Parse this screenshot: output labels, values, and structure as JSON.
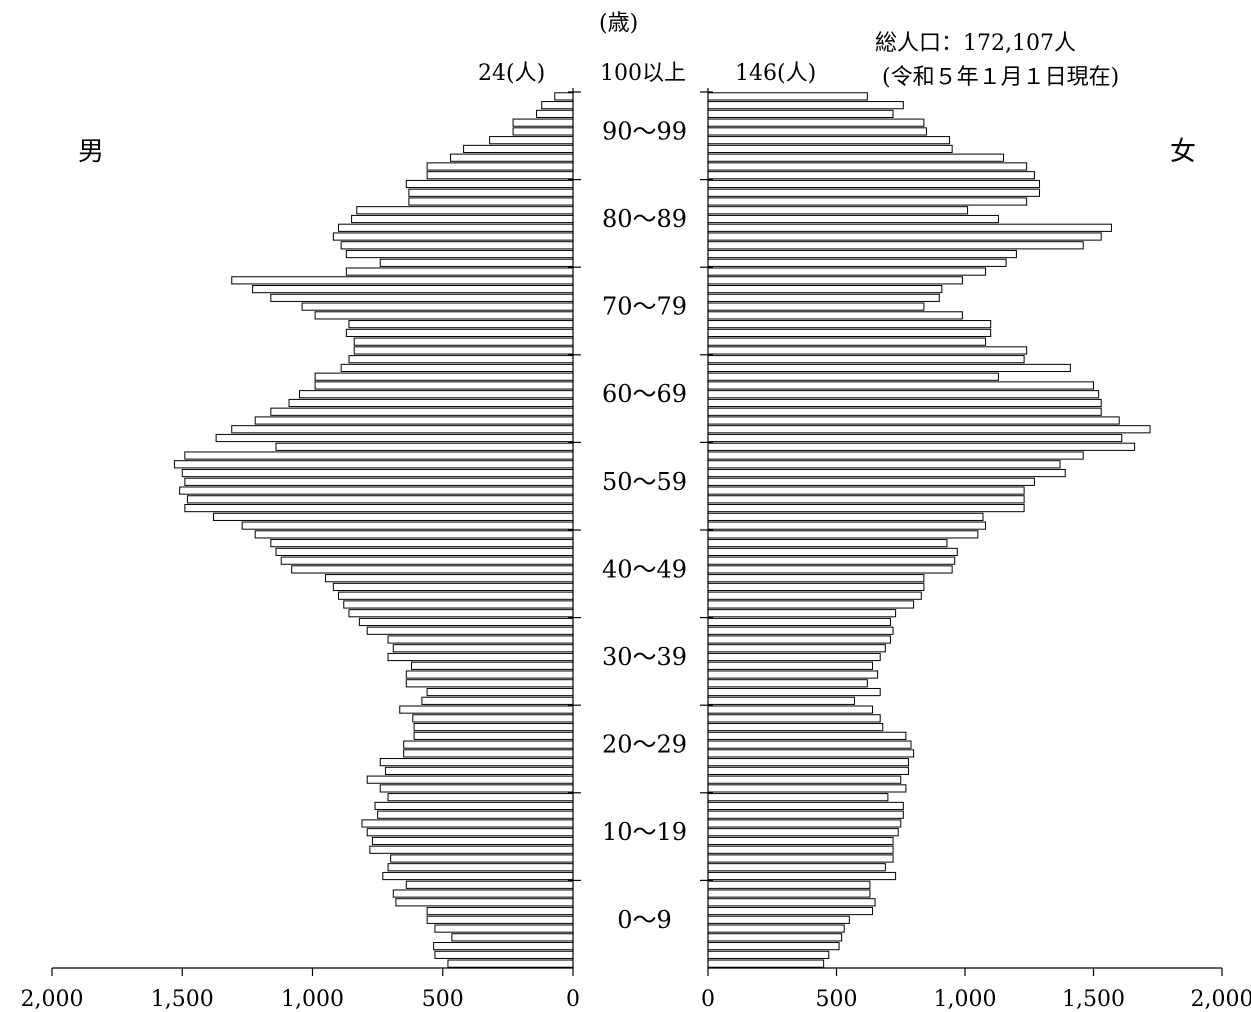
{
  "chart_data": {
    "type": "bar",
    "orientation": "horizontal",
    "layout": "population-pyramid",
    "unit_label": "(歳)",
    "total_label": "総人口：172,107人",
    "date_label": "(令和５年１月１日現在)",
    "male_label": "男",
    "female_label": "女",
    "top_group_label": "100以上",
    "top_group_male_label": "24(人)",
    "top_group_female_label": "146(人)",
    "age_group_labels": [
      "0～9",
      "10～19",
      "20～29",
      "30～39",
      "40～49",
      "50～59",
      "60～69",
      "70～79",
      "80～89",
      "90～99"
    ],
    "x_ticks": [
      "0",
      "500",
      "1,000",
      "1,500",
      "2,000"
    ],
    "male_xlim": [
      0,
      2000
    ],
    "female_xlim": [
      0,
      2000
    ],
    "ages": [
      0,
      1,
      2,
      3,
      4,
      5,
      6,
      7,
      8,
      9,
      10,
      11,
      12,
      13,
      14,
      15,
      16,
      17,
      18,
      19,
      20,
      21,
      22,
      23,
      24,
      25,
      26,
      27,
      28,
      29,
      30,
      31,
      32,
      33,
      34,
      35,
      36,
      37,
      38,
      39,
      40,
      41,
      42,
      43,
      44,
      45,
      46,
      47,
      48,
      49,
      50,
      51,
      52,
      53,
      54,
      55,
      56,
      57,
      58,
      59,
      60,
      61,
      62,
      63,
      64,
      65,
      66,
      67,
      68,
      69,
      70,
      71,
      72,
      73,
      74,
      75,
      76,
      77,
      78,
      79,
      80,
      81,
      82,
      83,
      84,
      85,
      86,
      87,
      88,
      89,
      90,
      91,
      92,
      93,
      94,
      95,
      96,
      97,
      98,
      99
    ],
    "series": [
      {
        "name": "男",
        "values": [
          480,
          530,
          535,
          465,
          530,
          560,
          560,
          680,
          690,
          640,
          730,
          710,
          700,
          780,
          770,
          790,
          810,
          750,
          760,
          710,
          740,
          790,
          720,
          740,
          650,
          650,
          610,
          610,
          615,
          665,
          580,
          560,
          640,
          640,
          620,
          710,
          690,
          710,
          790,
          820,
          860,
          880,
          900,
          920,
          950,
          1080,
          1120,
          1140,
          1160,
          1220,
          1270,
          1380,
          1490,
          1480,
          1510,
          1490,
          1500,
          1530,
          1490,
          1140,
          1370,
          1310,
          1220,
          1160,
          1090,
          1050,
          990,
          990,
          890,
          860,
          840,
          840,
          870,
          860,
          990,
          1040,
          1160,
          1230,
          1310,
          870,
          740,
          870,
          890,
          920,
          900,
          850,
          830,
          630,
          630,
          640,
          560,
          560,
          470,
          420,
          320,
          230,
          230,
          140,
          120,
          70
        ]
      },
      {
        "name": "女",
        "values": [
          450,
          470,
          510,
          520,
          530,
          550,
          640,
          650,
          630,
          630,
          730,
          690,
          720,
          720,
          720,
          740,
          750,
          760,
          760,
          700,
          770,
          750,
          780,
          780,
          800,
          790,
          770,
          680,
          670,
          640,
          570,
          670,
          620,
          660,
          640,
          670,
          690,
          710,
          720,
          710,
          730,
          800,
          830,
          840,
          840,
          950,
          960,
          970,
          930,
          1050,
          1080,
          1070,
          1230,
          1230,
          1230,
          1270,
          1390,
          1370,
          1460,
          1660,
          1610,
          1720,
          1600,
          1530,
          1530,
          1520,
          1500,
          1130,
          1410,
          1230,
          1240,
          1080,
          1100,
          1100,
          990,
          840,
          900,
          910,
          990,
          1080,
          1160,
          1200,
          1460,
          1530,
          1570,
          1130,
          1010,
          1240,
          1290,
          1290,
          1270,
          1240,
          1150,
          950,
          940,
          850,
          840,
          720,
          760,
          620
        ]
      }
    ]
  }
}
